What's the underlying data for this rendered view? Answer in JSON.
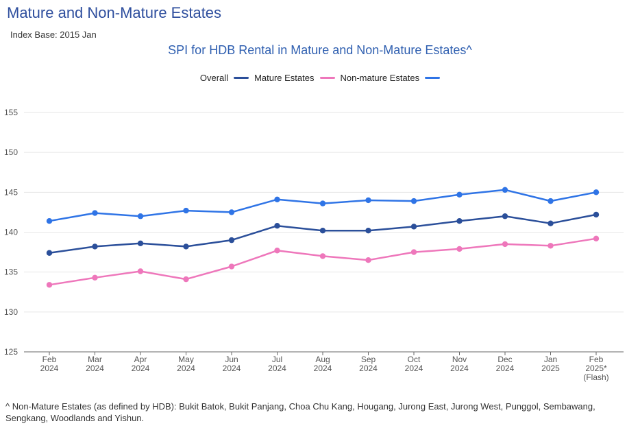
{
  "header": {
    "title": "Mature and Non-Mature Estates",
    "subtitle": "Index Base: 2015 Jan"
  },
  "footnote": "^ Non-Mature Estates (as defined by HDB): Bukit Batok, Bukit Panjang, Choa Chu Kang, Hougang, Jurong East, Jurong West, Punggol, Sembawang, Sengkang, Woodlands and Yishun.",
  "chart_data": {
    "type": "line",
    "title": "SPI for HDB Rental in Mature and Non-Mature Estates^",
    "xlabel": "",
    "ylabel": "",
    "ylim": [
      125,
      155
    ],
    "yticks": [
      125,
      130,
      135,
      140,
      145,
      150,
      155
    ],
    "grid": true,
    "legend_position": "top",
    "categories": [
      [
        "Feb",
        "2024"
      ],
      [
        "Mar",
        "2024"
      ],
      [
        "Apr",
        "2024"
      ],
      [
        "May",
        "2024"
      ],
      [
        "Jun",
        "2024"
      ],
      [
        "Jul",
        "2024"
      ],
      [
        "Aug",
        "2024"
      ],
      [
        "Sep",
        "2024"
      ],
      [
        "Oct",
        "2024"
      ],
      [
        "Nov",
        "2024"
      ],
      [
        "Dec",
        "2024"
      ],
      [
        "Jan",
        "2025"
      ],
      [
        "Feb",
        "2025*",
        "(Flash)"
      ]
    ],
    "series": [
      {
        "name": "Overall",
        "color": "#2b4f9a",
        "values": [
          137.4,
          138.2,
          138.6,
          138.2,
          139.0,
          140.8,
          140.2,
          140.2,
          140.7,
          141.4,
          142.0,
          141.1,
          142.2
        ]
      },
      {
        "name": "Mature Estates",
        "color": "#ee77bb",
        "values": [
          133.4,
          134.3,
          135.1,
          134.1,
          135.7,
          137.7,
          137.0,
          136.5,
          137.5,
          137.9,
          138.5,
          138.3,
          139.2
        ]
      },
      {
        "name": "Non-mature Estates",
        "color": "#2f74e6",
        "values": [
          141.4,
          142.4,
          142.0,
          142.7,
          142.5,
          144.1,
          143.6,
          144.0,
          143.9,
          144.7,
          145.3,
          143.9,
          145.0
        ]
      }
    ]
  }
}
